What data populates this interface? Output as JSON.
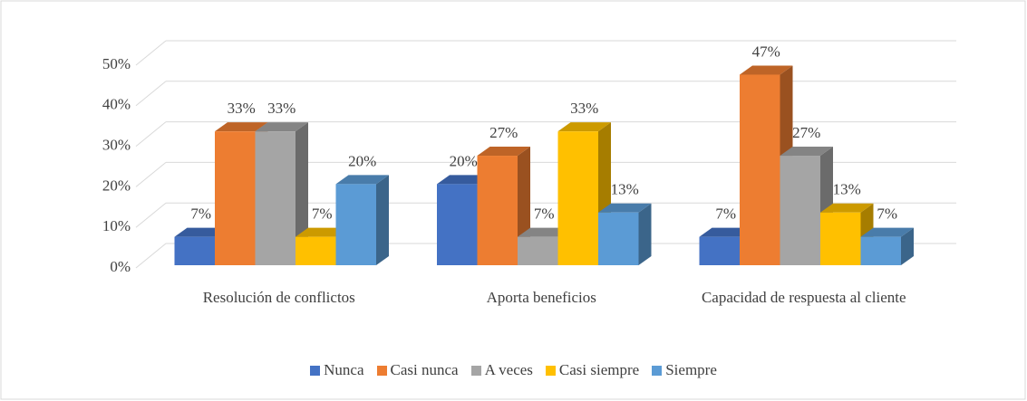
{
  "chart_data": {
    "type": "bar3d",
    "categories": [
      "Resolución de conflictos",
      "Aporta beneficios",
      "Capacidad de respuesta al cliente"
    ],
    "series": [
      {
        "name": "Nunca",
        "color": "#4472c4",
        "values": [
          7,
          20,
          7
        ],
        "value_labels": [
          "7%",
          "20%",
          "7%"
        ]
      },
      {
        "name": "Casi nunca",
        "color": "#ed7d31",
        "values": [
          33,
          27,
          47
        ],
        "value_labels": [
          "33%",
          "27%",
          "47%"
        ]
      },
      {
        "name": "A veces",
        "color": "#a5a5a5",
        "values": [
          33,
          7,
          27
        ],
        "value_labels": [
          "33%",
          "7%",
          "27%"
        ]
      },
      {
        "name": "Casi siempre",
        "color": "#ffc000",
        "values": [
          7,
          33,
          13
        ],
        "value_labels": [
          "7%",
          "33%",
          "13%"
        ]
      },
      {
        "name": "Siempre",
        "color": "#5b9bd5",
        "values": [
          20,
          13,
          7
        ],
        "value_labels": [
          "20%",
          "13%",
          "7%"
        ]
      }
    ],
    "ylim": [
      0,
      50
    ],
    "yticks": [
      {
        "value": 0,
        "label": "0%"
      },
      {
        "value": 10,
        "label": "10%"
      },
      {
        "value": 20,
        "label": "20%"
      },
      {
        "value": 30,
        "label": "30%"
      },
      {
        "value": 40,
        "label": "40%"
      },
      {
        "value": 50,
        "label": "50%"
      }
    ],
    "grid": true,
    "legend": "bottom"
  }
}
